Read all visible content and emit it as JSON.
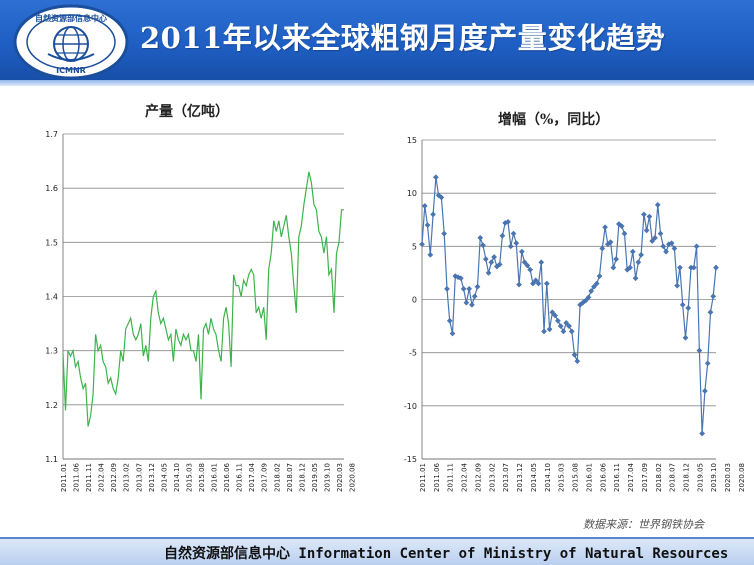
{
  "header": {
    "title": "2011年以来全球粗钢月度产量变化趋势",
    "logo_top_text": "自然资源部信息中心",
    "logo_bottom_text": "ICMNR"
  },
  "footer": {
    "text": "自然资源部信息中心   Information Center of Ministry of Natural Resources"
  },
  "source_note": "数据来源：世界钢铁协会",
  "colors": {
    "header": "#1f5fc4",
    "production_line": "#3cb44b",
    "growth_line": "#4a76b3"
  },
  "chart_data": [
    {
      "type": "line",
      "title": "产量（亿吨）",
      "ylim": [
        1.1,
        1.7
      ],
      "yticks": [
        "1.1",
        "1.2",
        "1.3",
        "1.4",
        "1.5",
        "1.6",
        "1.7"
      ],
      "grid": true,
      "xtick_labels": [
        "2011.01",
        "2011.06",
        "2011.11",
        "2012.04",
        "2012.09",
        "2013.02",
        "2013.07",
        "2013.12",
        "2014.05",
        "2014.10",
        "2015.03",
        "2015.08",
        "2016.01",
        "2016.06",
        "2016.11",
        "2017.04",
        "2017.09",
        "2018.02",
        "2018.07",
        "2018.12",
        "2019.05",
        "2019.10",
        "2020.03",
        "2020.08"
      ],
      "values": [
        1.295,
        1.19,
        1.3,
        1.29,
        1.3,
        1.27,
        1.28,
        1.25,
        1.23,
        1.24,
        1.16,
        1.18,
        1.22,
        1.33,
        1.3,
        1.31,
        1.28,
        1.27,
        1.24,
        1.25,
        1.23,
        1.22,
        1.25,
        1.3,
        1.28,
        1.34,
        1.35,
        1.36,
        1.33,
        1.32,
        1.33,
        1.35,
        1.29,
        1.31,
        1.28,
        1.36,
        1.4,
        1.41,
        1.37,
        1.35,
        1.36,
        1.34,
        1.32,
        1.33,
        1.28,
        1.34,
        1.32,
        1.31,
        1.33,
        1.32,
        1.33,
        1.3,
        1.3,
        1.28,
        1.33,
        1.21,
        1.34,
        1.35,
        1.33,
        1.36,
        1.34,
        1.33,
        1.3,
        1.28,
        1.36,
        1.38,
        1.35,
        1.27,
        1.44,
        1.42,
        1.42,
        1.4,
        1.43,
        1.42,
        1.44,
        1.45,
        1.44,
        1.37,
        1.38,
        1.36,
        1.38,
        1.32,
        1.45,
        1.48,
        1.54,
        1.52,
        1.54,
        1.51,
        1.53,
        1.55,
        1.51,
        1.48,
        1.42,
        1.37,
        1.51,
        1.53,
        1.57,
        1.6,
        1.63,
        1.61,
        1.57,
        1.56,
        1.52,
        1.51,
        1.48,
        1.51,
        1.44,
        1.45,
        1.37,
        1.48,
        1.5,
        1.56,
        1.56
      ]
    },
    {
      "type": "line",
      "title": "增幅（%，同比）",
      "ylim": [
        -15,
        15
      ],
      "yticks": [
        "15",
        "10",
        "5",
        "0",
        "-5",
        "-10",
        "-15"
      ],
      "grid": true,
      "markers": "diamond",
      "xtick_labels": [
        "2011.01",
        "2011.06",
        "2011.11",
        "2012.04",
        "2012.09",
        "2013.02",
        "2013.07",
        "2013.12",
        "2014.05",
        "2014.10",
        "2015.03",
        "2015.08",
        "2016.01",
        "2016.06",
        "2016.11",
        "2017.04",
        "2017.09",
        "2018.02",
        "2018.07",
        "2018.12",
        "2019.05",
        "2019.10",
        "2020.03",
        "2020.08"
      ],
      "values": [
        5.2,
        8.8,
        7.0,
        4.2,
        8.0,
        11.5,
        9.8,
        9.6,
        6.2,
        1.0,
        -2.0,
        -3.2,
        2.2,
        2.1,
        2.0,
        1.0,
        -0.3,
        1.0,
        -0.5,
        0.3,
        1.2,
        5.8,
        5.1,
        3.8,
        2.5,
        3.5,
        4.0,
        3.1,
        3.3,
        6.0,
        7.2,
        7.3,
        5.0,
        6.2,
        5.3,
        1.4,
        4.5,
        3.5,
        3.2,
        2.8,
        1.5,
        1.8,
        1.5,
        3.5,
        -3.0,
        1.5,
        -2.8,
        -1.2,
        -1.5,
        -2.0,
        -2.5,
        -3.0,
        -2.2,
        -2.5,
        -3.0,
        -5.2,
        -5.8,
        -0.5,
        -0.3,
        -0.1,
        0.2,
        0.8,
        1.2,
        1.5,
        2.2,
        4.8,
        6.8,
        5.2,
        5.4,
        3.0,
        3.8,
        7.1,
        6.9,
        6.2,
        2.8,
        3.0,
        4.5,
        2.0,
        3.5,
        4.2,
        8.0,
        6.5,
        7.8,
        5.5,
        5.8,
        8.9,
        6.2,
        5.0,
        4.5,
        5.2,
        5.3,
        4.8,
        1.3,
        3.0,
        -0.5,
        -3.6,
        -0.8,
        3.0,
        3.0,
        5.0,
        -4.8,
        -12.6,
        -8.6,
        -6.0,
        -1.2,
        0.3,
        3.0
      ]
    }
  ]
}
